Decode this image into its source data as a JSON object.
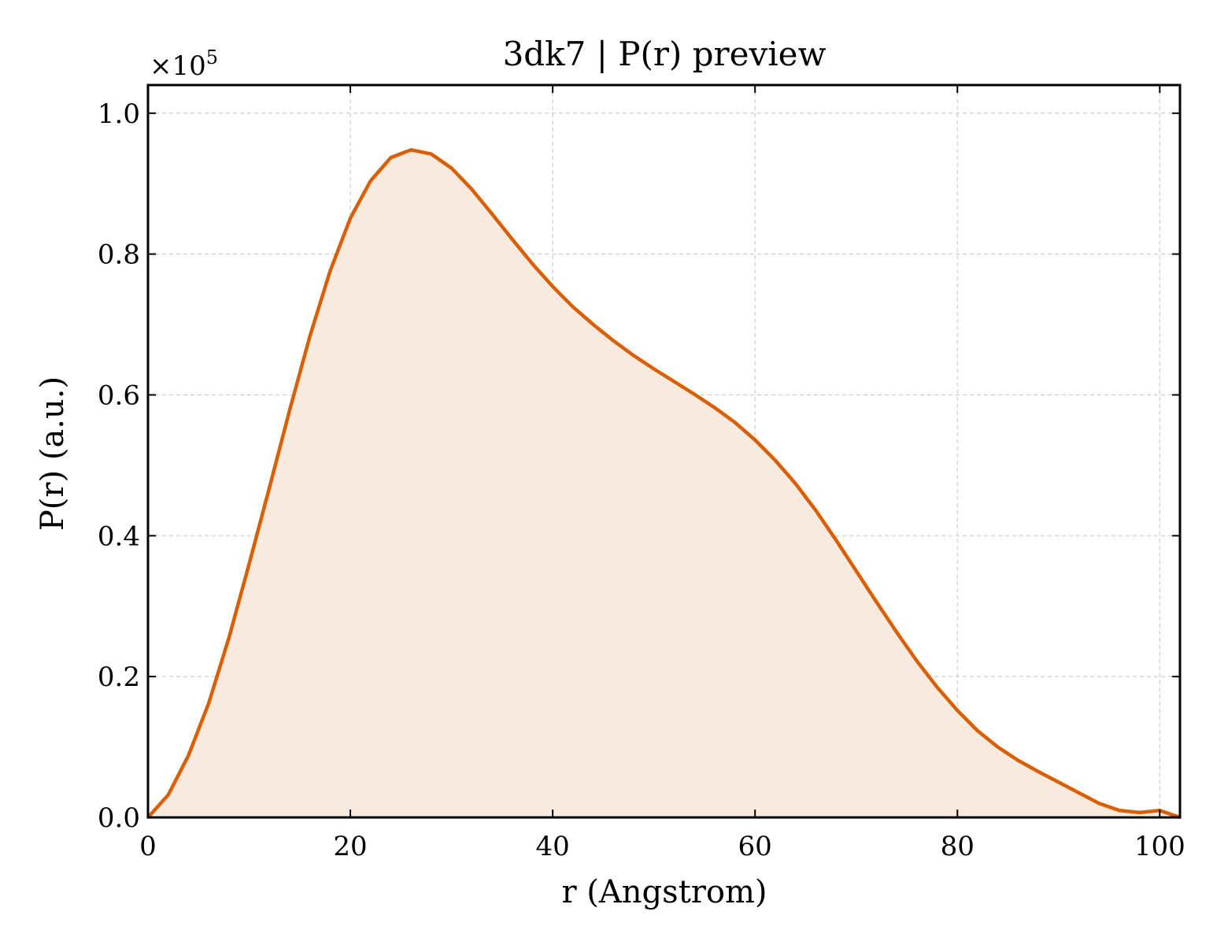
{
  "chart_data": {
    "type": "area",
    "title": "3dk7 | P(r) preview",
    "xlabel": "r (Angstrom)",
    "ylabel": "P(r) (a.u.)",
    "y_scale_label": "×10",
    "y_scale_exponent": "5",
    "xlim": [
      0,
      102
    ],
    "ylim": [
      0,
      1.04
    ],
    "x_ticks": [
      0,
      20,
      40,
      60,
      80,
      100
    ],
    "x_tick_labels": [
      "0",
      "20",
      "40",
      "60",
      "80",
      "100"
    ],
    "y_ticks": [
      0.0,
      0.2,
      0.4,
      0.6,
      0.8,
      1.0
    ],
    "y_tick_labels": [
      "0.0",
      "0.2",
      "0.4",
      "0.6",
      "0.8",
      "1.0"
    ],
    "grid": true,
    "line_color": "#d95f02",
    "fill_color": "#f9eadf",
    "series": [
      {
        "x": [
          0,
          2,
          4,
          6,
          8,
          10,
          12,
          14,
          16,
          18,
          20,
          22,
          24,
          26,
          28,
          30,
          32,
          34,
          36,
          38,
          40,
          42,
          44,
          46,
          48,
          50,
          52,
          54,
          56,
          58,
          60,
          62,
          64,
          66,
          68,
          70,
          72,
          74,
          76,
          78,
          80,
          82,
          84,
          86,
          88,
          90,
          92,
          94,
          96,
          98,
          100,
          102
        ],
        "y": [
          0.0,
          0.032,
          0.088,
          0.162,
          0.255,
          0.36,
          0.468,
          0.578,
          0.683,
          0.776,
          0.851,
          0.904,
          0.937,
          0.948,
          0.942,
          0.922,
          0.892,
          0.857,
          0.821,
          0.786,
          0.754,
          0.725,
          0.7,
          0.677,
          0.656,
          0.637,
          0.619,
          0.601,
          0.582,
          0.561,
          0.536,
          0.507,
          0.474,
          0.436,
          0.394,
          0.35,
          0.306,
          0.263,
          0.222,
          0.185,
          0.152,
          0.123,
          0.1,
          0.081,
          0.065,
          0.05,
          0.035,
          0.02,
          0.01,
          0.007,
          0.01,
          0.0
        ]
      }
    ]
  }
}
